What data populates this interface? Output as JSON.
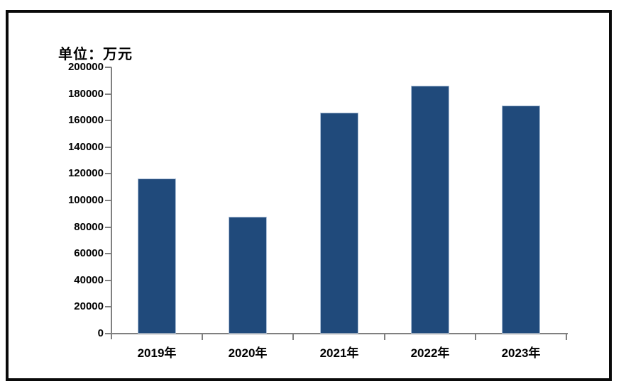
{
  "unit_label": "单位：万元",
  "colors": {
    "bar_fill": "#204a7b",
    "bar_border": "#aec1d8",
    "axis": "#808080",
    "text": "#000000",
    "frame_border": "#0a0a0a",
    "background": "#ffffff"
  },
  "chart_data": {
    "type": "bar",
    "title": "单位：万元",
    "categories": [
      "2019年",
      "2020年",
      "2021年",
      "2022年",
      "2023年"
    ],
    "values": [
      116500,
      88000,
      166000,
      186000,
      171500
    ],
    "xlabel": "",
    "ylabel": "",
    "ylim": [
      0,
      200000
    ],
    "ytick_interval": 20000,
    "ytick_labels": [
      "0",
      "20000",
      "40000",
      "60000",
      "80000",
      "100000",
      "120000",
      "140000",
      "160000",
      "180000",
      "200000"
    ],
    "grid": false,
    "legend": "none",
    "series_name": ""
  }
}
